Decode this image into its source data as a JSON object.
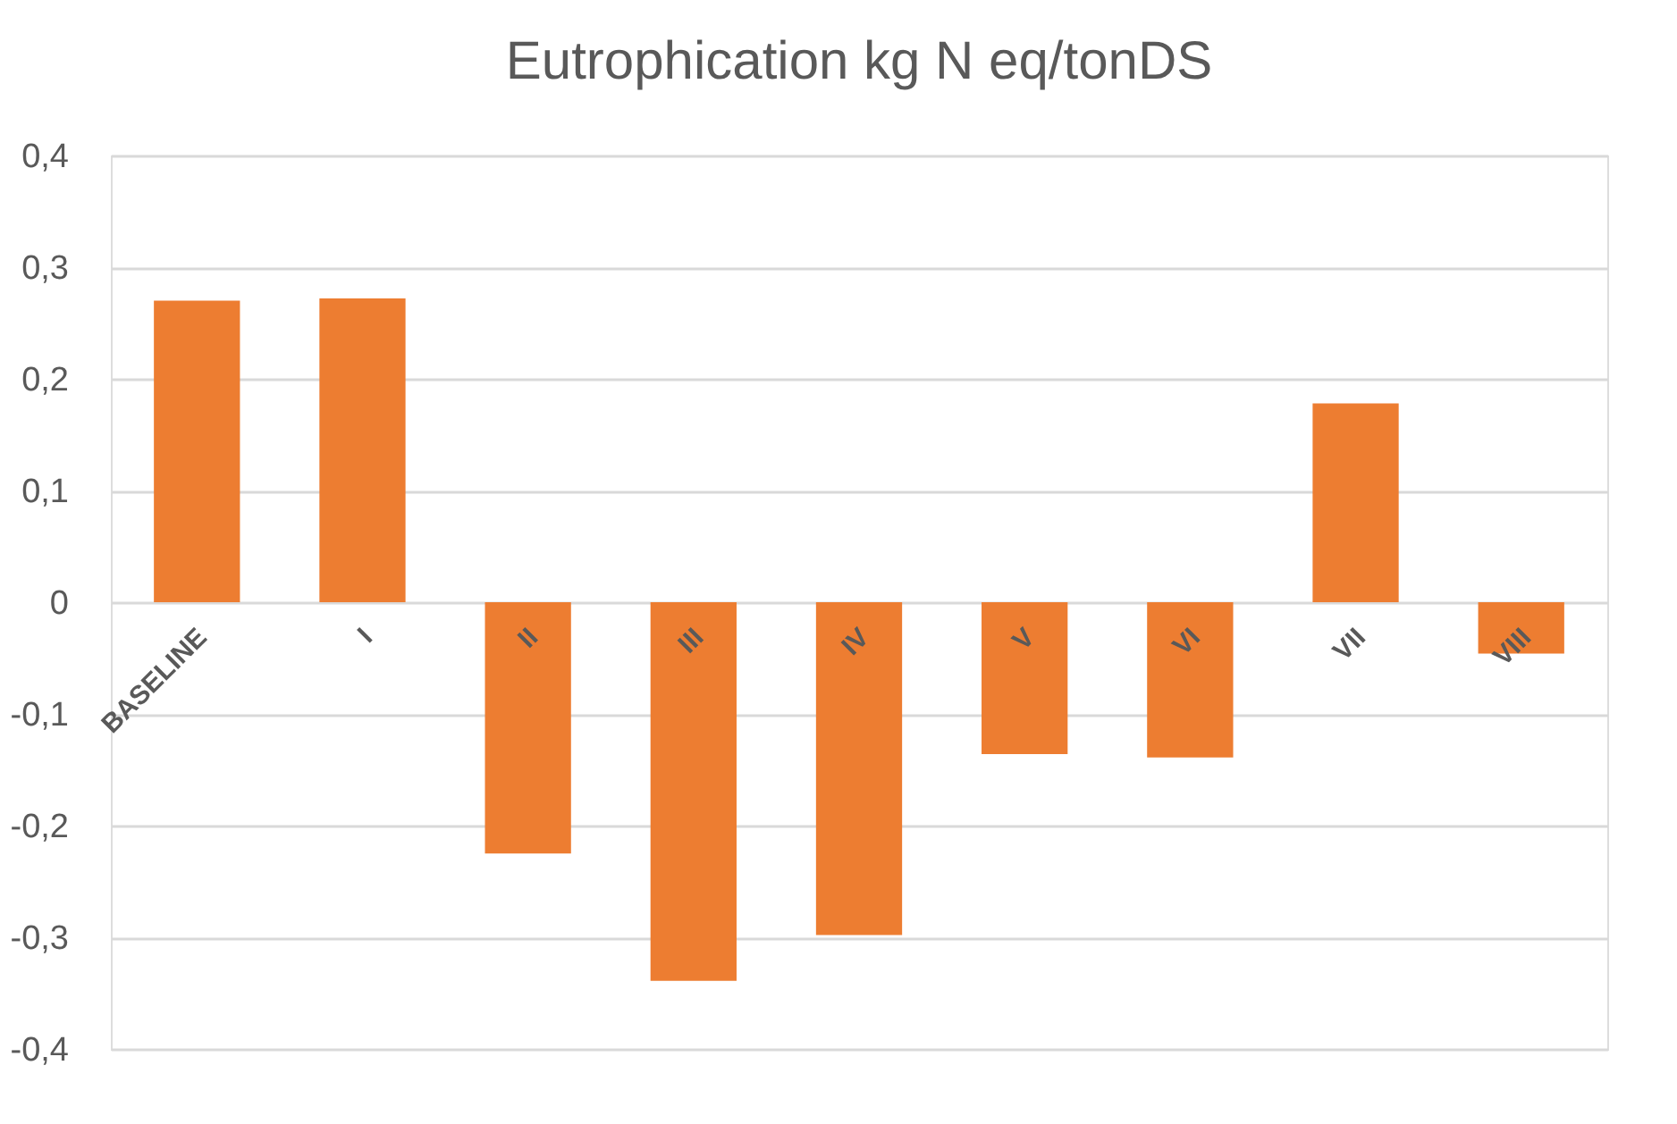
{
  "chart_data": {
    "type": "bar",
    "title": "Eutrophication kg N eq/tonDS",
    "categories": [
      "BASELINE",
      "I",
      "II",
      "III",
      "IV",
      "V",
      "VI",
      "VII",
      "VIII"
    ],
    "values": [
      0.27,
      0.272,
      -0.225,
      -0.339,
      -0.298,
      -0.136,
      -0.139,
      0.178,
      -0.046
    ],
    "color": "#ed7d31",
    "ylim": [
      -0.4,
      0.4
    ],
    "yticks": [
      {
        "value": -0.4,
        "label": "-0,4"
      },
      {
        "value": -0.3,
        "label": "-0,3"
      },
      {
        "value": -0.2,
        "label": "-0,2"
      },
      {
        "value": -0.1,
        "label": "-0,1"
      },
      0,
      {
        "value": 0.1,
        "label": "0,1"
      },
      {
        "value": 0.2,
        "label": "0,2"
      },
      {
        "value": 0.3,
        "label": "0,3"
      },
      {
        "value": 0.4,
        "label": "0,4"
      }
    ],
    "grid": "y"
  }
}
